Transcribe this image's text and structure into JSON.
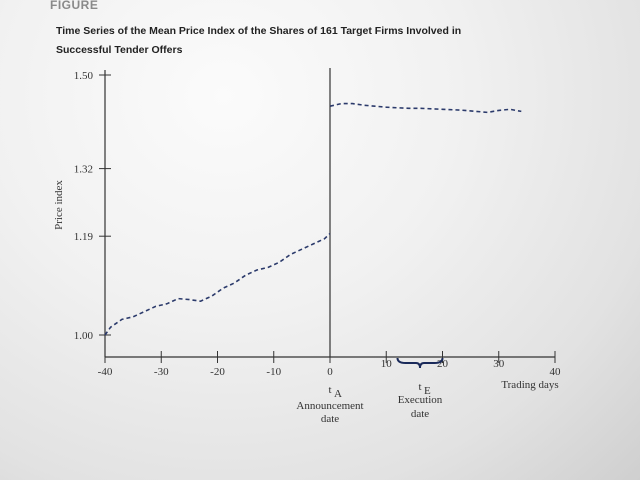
{
  "figure_label": "FIGURE",
  "title_line1": "Time Series of the Mean Price Index of the Shares of 161 Target Firms Involved in",
  "title_line2": "Successful Tender Offers",
  "chart_data": {
    "type": "line",
    "title": "Time Series of the Mean Price Index of the Shares of 161 Target Firms Involved in Successful Tender Offers",
    "xlabel": "Trading days",
    "ylabel": "Price index",
    "xlim": [
      -40,
      40
    ],
    "ylim": [
      1.0,
      1.5
    ],
    "x_ticks": [
      -40,
      -30,
      -20,
      -10,
      0,
      10,
      20,
      30,
      40
    ],
    "x_tick_labels": [
      "-40",
      "-30",
      "-20",
      "-10",
      "0",
      "10",
      "20",
      "30",
      "40"
    ],
    "y_ticks": [
      1.0,
      1.19,
      1.32,
      1.5
    ],
    "y_tick_labels": [
      "1.00",
      "1.19",
      "1.32",
      "1.50"
    ],
    "grid": false,
    "line_style": "dashed",
    "color": "#2b3a6b",
    "series": [
      {
        "name": "",
        "x": [
          -40,
          -39,
          -37,
          -35,
          -33,
          -31,
          -29,
          -27,
          -25,
          -23,
          -21,
          -19,
          -17,
          -15,
          -13,
          -11,
          -9,
          -7,
          -5,
          -3,
          -1,
          0
        ],
        "y": [
          1.0,
          1.015,
          1.03,
          1.035,
          1.045,
          1.055,
          1.06,
          1.07,
          1.068,
          1.065,
          1.075,
          1.09,
          1.1,
          1.115,
          1.125,
          1.13,
          1.14,
          1.155,
          1.165,
          1.175,
          1.185,
          1.195
        ]
      },
      {
        "name": "",
        "x": [
          0,
          2,
          4,
          6,
          8,
          10,
          12,
          14,
          16,
          18,
          20,
          22,
          24,
          26,
          28,
          30,
          32,
          34
        ],
        "y": [
          1.44,
          1.445,
          1.445,
          1.442,
          1.44,
          1.438,
          1.437,
          1.436,
          1.436,
          1.435,
          1.434,
          1.433,
          1.432,
          1.43,
          1.428,
          1.432,
          1.434,
          1.43
        ]
      }
    ],
    "annotations": [
      {
        "x": 0,
        "symbol": "t",
        "subscript": "A",
        "label_line1": "Announcement",
        "label_line2": "date"
      },
      {
        "x_start": 12,
        "x_end": 20,
        "symbol": "t",
        "subscript": "E",
        "label_line1": "Execution",
        "label_line2": "date"
      }
    ]
  }
}
